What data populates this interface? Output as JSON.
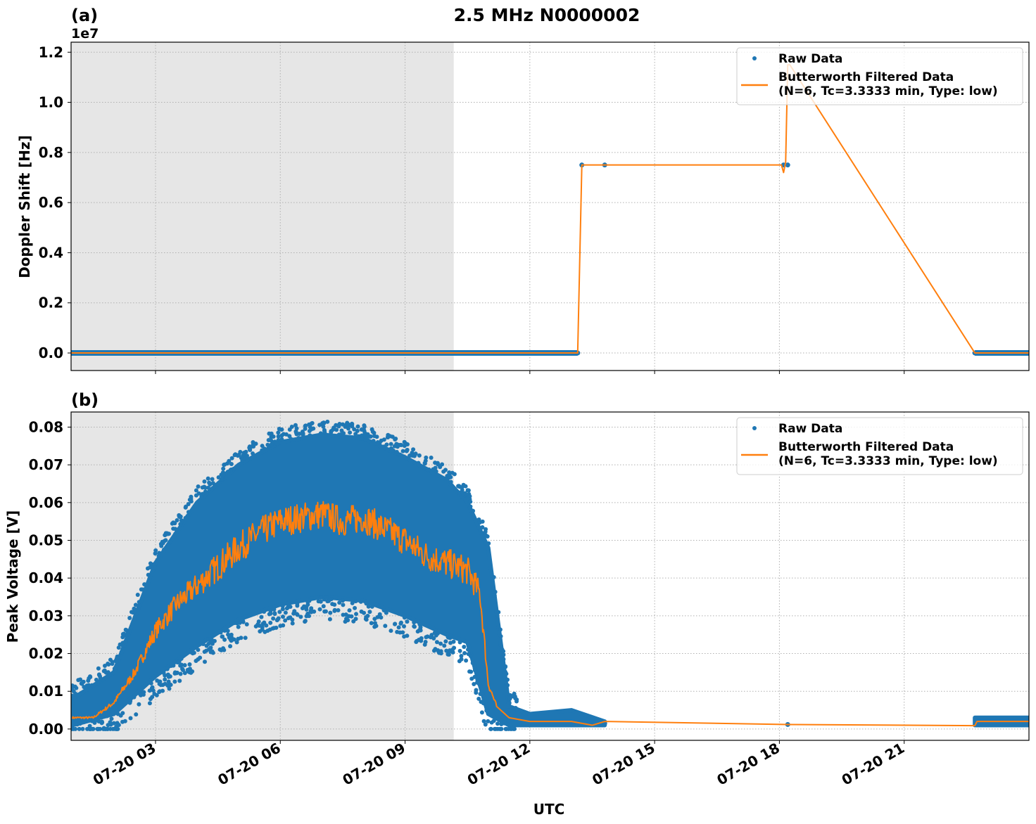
{
  "figure": {
    "suptitle": "2.5 MHz N0000002",
    "xlabel": "UTC",
    "night_shade_color": "#e6e6e6",
    "raw_color": "#1f77b4",
    "filtered_color": "#ff7f0e"
  },
  "panels": [
    {
      "label": "(a)",
      "ylabel": "Doppler Shift [Hz]",
      "offset_text": "1e7",
      "yticks": [
        "0.0",
        "0.2",
        "0.4",
        "0.6",
        "0.8",
        "1.0",
        "1.2"
      ],
      "legend": {
        "raw": "Raw Data",
        "filtered_line1": "Butterworth Filtered Data",
        "filtered_line2": "(N=6, Tc=3.3333 min, Type: low)"
      }
    },
    {
      "label": "(b)",
      "ylabel": "Peak Voltage [V]",
      "yticks": [
        "0.00",
        "0.01",
        "0.02",
        "0.03",
        "0.04",
        "0.05",
        "0.06",
        "0.07",
        "0.08"
      ],
      "legend": {
        "raw": "Raw Data",
        "filtered_line1": "Butterworth Filtered Data",
        "filtered_line2": "(N=6, Tc=3.3333 min, Type: low)"
      }
    }
  ],
  "xticks": [
    "07-20 03",
    "07-20 06",
    "07-20 09",
    "07-20 12",
    "07-20 15",
    "07-20 18",
    "07-20 21"
  ],
  "chart_data": [
    {
      "type": "line",
      "title": "2.5 MHz N0000002",
      "panel": "(a)",
      "xlabel": "UTC",
      "ylabel": "Doppler Shift [Hz]",
      "y_scale_multiplier": 10000000.0,
      "ylim": [
        -0.07,
        1.24
      ],
      "xlim_hours": [
        0.97,
        24.0
      ],
      "grid": true,
      "legend_position": "upper right",
      "shaded_region_hours": [
        0.97,
        10.17
      ],
      "series": [
        {
          "name": "Raw Data",
          "style": "scatter",
          "x_hours": [
            0.97,
            13.15,
            13.25,
            13.8,
            18.1,
            18.2,
            22.7,
            24.0
          ],
          "y": [
            0.0,
            0.0,
            0.75,
            0.75,
            0.75,
            0.75,
            0.0,
            0.0
          ]
        },
        {
          "name": "Butterworth Filtered Data (N=6, Tc=3.3333 min, Type: low)",
          "style": "line",
          "x_hours": [
            0.97,
            13.15,
            13.25,
            13.8,
            18.05,
            18.1,
            18.15,
            18.2,
            18.25,
            22.7,
            24.0
          ],
          "y": [
            0.0,
            0.0,
            0.75,
            0.75,
            0.75,
            0.72,
            0.76,
            1.15,
            1.15,
            0.0,
            0.0
          ]
        }
      ]
    },
    {
      "type": "line",
      "panel": "(b)",
      "xlabel": "UTC",
      "ylabel": "Peak Voltage [V]",
      "ylim": [
        -0.003,
        0.084
      ],
      "xlim_hours": [
        0.97,
        24.0
      ],
      "grid": true,
      "legend_position": "upper right",
      "shaded_region_hours": [
        0.97,
        10.17
      ],
      "series": [
        {
          "name": "Raw Data",
          "style": "scatter_band",
          "x_hours": [
            1.0,
            2.0,
            3.0,
            4.0,
            5.0,
            6.0,
            7.0,
            8.0,
            9.0,
            10.0,
            10.5,
            11.0,
            11.5,
            12.0,
            13.0,
            13.8,
            18.2,
            22.7,
            24.0
          ],
          "y_low": [
            0.001,
            0.004,
            0.014,
            0.022,
            0.029,
            0.033,
            0.035,
            0.034,
            0.03,
            0.025,
            0.023,
            0.004,
            0.001,
            0.001,
            0.001,
            0.001,
            0.001,
            0.001,
            0.001
          ],
          "y_high": [
            0.008,
            0.015,
            0.044,
            0.06,
            0.07,
            0.076,
            0.078,
            0.077,
            0.072,
            0.066,
            0.06,
            0.048,
            0.006,
            0.004,
            0.005,
            0.002,
            0.0015,
            0.003,
            0.003
          ]
        },
        {
          "name": "Butterworth Filtered Data (N=6, Tc=3.3333 min, Type: low)",
          "style": "line",
          "x_hours": [
            1.0,
            1.5,
            2.0,
            2.5,
            3.0,
            3.5,
            4.0,
            4.5,
            5.0,
            5.5,
            6.0,
            6.5,
            7.0,
            7.5,
            8.0,
            8.5,
            9.0,
            9.5,
            10.0,
            10.5,
            10.8,
            11.0,
            11.2,
            11.5,
            12.0,
            13.0,
            13.5,
            13.8,
            18.2,
            22.7,
            22.75,
            24.0
          ],
          "y": [
            0.003,
            0.003,
            0.007,
            0.015,
            0.026,
            0.033,
            0.038,
            0.043,
            0.048,
            0.052,
            0.055,
            0.056,
            0.057,
            0.055,
            0.056,
            0.053,
            0.05,
            0.046,
            0.044,
            0.042,
            0.036,
            0.012,
            0.006,
            0.003,
            0.002,
            0.002,
            0.001,
            0.002,
            0.0012,
            0.0009,
            0.002,
            0.002
          ]
        }
      ]
    }
  ]
}
